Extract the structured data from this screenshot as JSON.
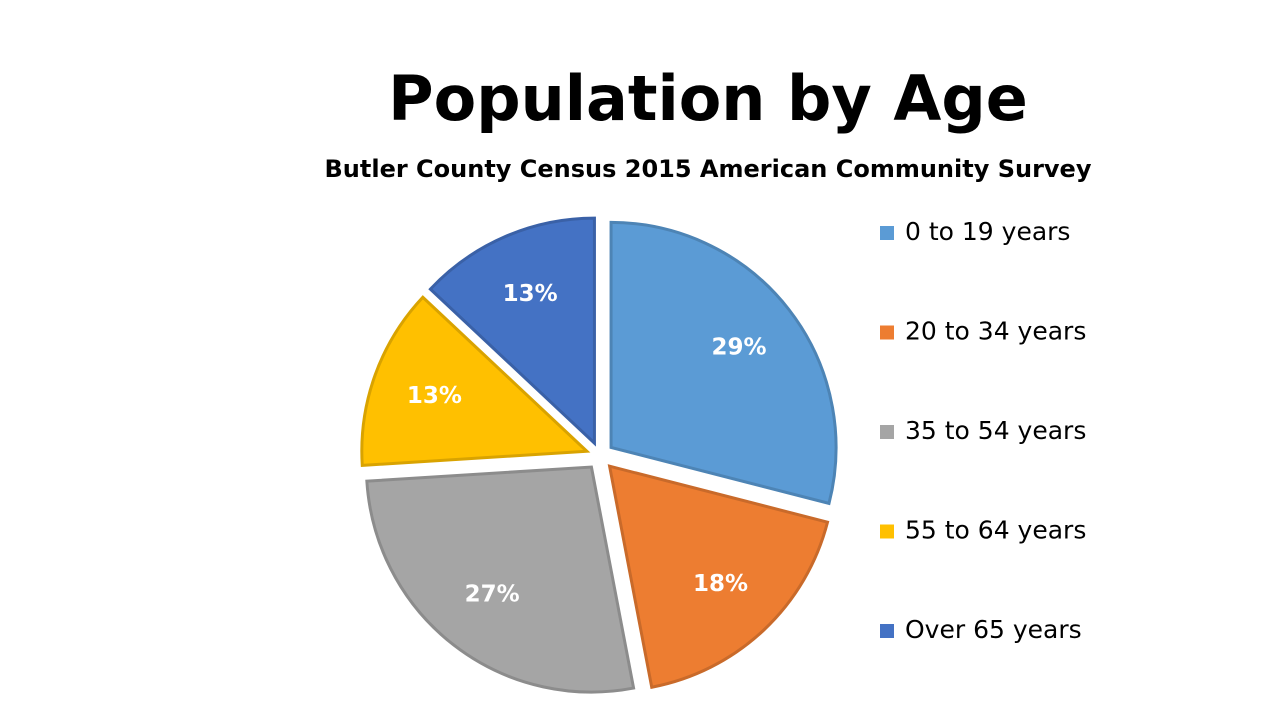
{
  "chart_data": {
    "type": "pie",
    "title": "Population by Age",
    "subtitle": "Butler County Census 2015 American Community Survey",
    "categories": [
      "0 to 19 years",
      "20 to 34 years",
      "35 to 54 years",
      "55 to 64 years",
      "Over 65 years"
    ],
    "values": [
      29,
      18,
      27,
      13,
      13
    ],
    "value_labels": [
      "29%",
      "18%",
      "27%",
      "13%",
      "13%"
    ],
    "colors": [
      "#5b9bd5",
      "#ed7d31",
      "#a5a5a5",
      "#ffc000",
      "#4472c4"
    ],
    "legend": "right"
  }
}
